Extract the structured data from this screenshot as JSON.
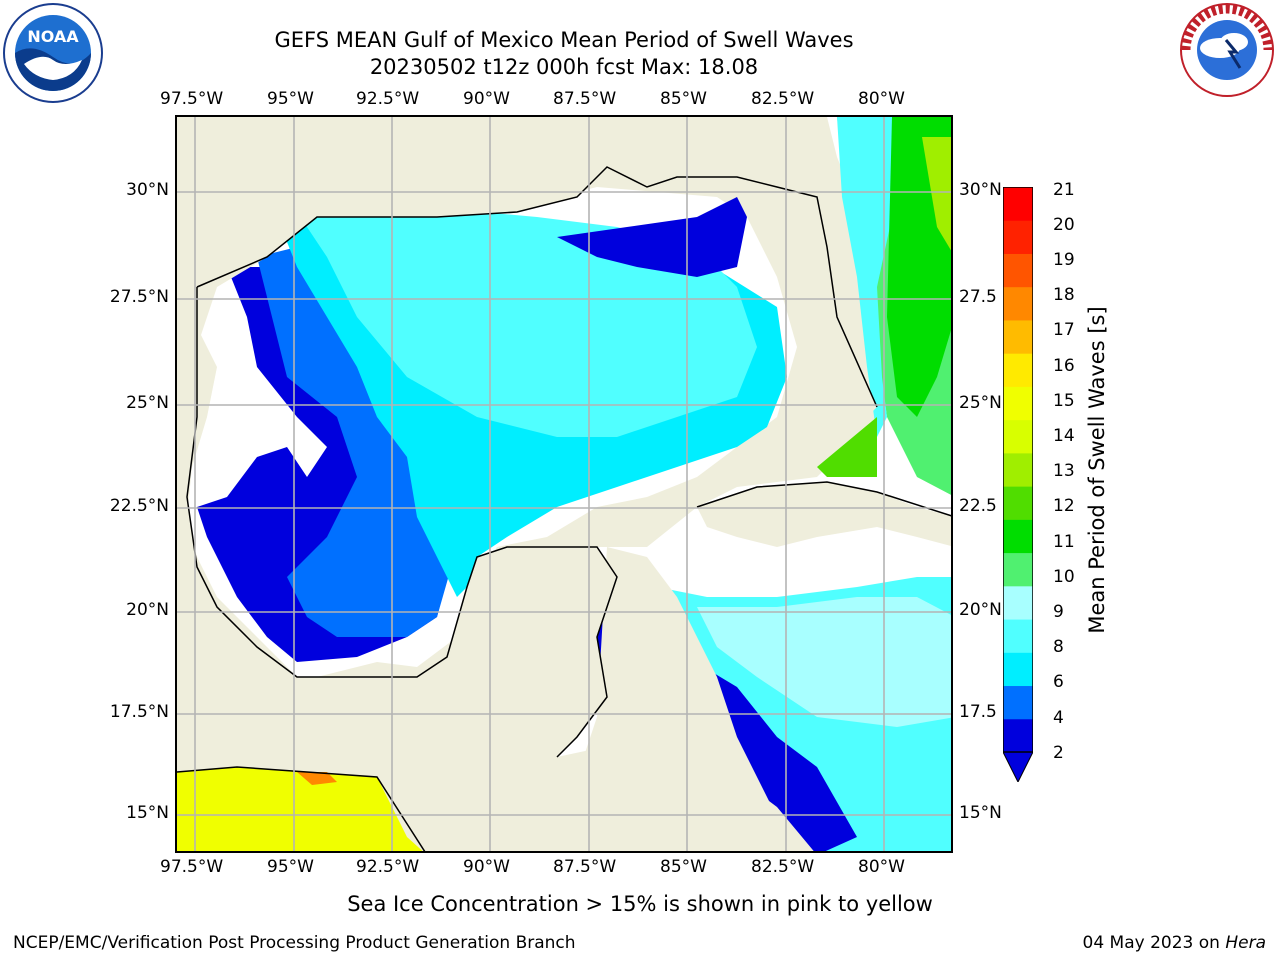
{
  "header": {
    "title_line1": "GEFS MEAN Gulf of Mexico Mean Period of Swell Waves",
    "title_line2": "20230502 t12z 000h fcst   Max: 18.08"
  },
  "logos": {
    "left": "noaa-logo-icon",
    "right": "national-weather-service-logo-icon"
  },
  "map": {
    "lon_ticks": [
      "97.5°W",
      "95°W",
      "92.5°W",
      "90°W",
      "87.5°W",
      "85°W",
      "82.5°W",
      "80°W"
    ],
    "lat_ticks": [
      "30°N",
      "27.5°N",
      "25°N",
      "22.5°N",
      "20°N",
      "17.5°N",
      "15°N"
    ],
    "lat_ticks_right": [
      "30°N",
      "27.5",
      "25°N",
      "22.5",
      "20°N",
      "17.5",
      "15°N"
    ],
    "land_color": "#efeedc",
    "grid_color": "#b4b4b4"
  },
  "colorbar": {
    "title": "Mean Period of Swell Waves [s]",
    "labels": [
      "21",
      "20",
      "19",
      "18",
      "17",
      "16",
      "15",
      "14",
      "13",
      "12",
      "11",
      "10",
      "9",
      "8",
      "6",
      "4",
      "2"
    ],
    "colors": [
      "#0000dd",
      "#0070ff",
      "#00eeff",
      "#50ffff",
      "#a8ffff",
      "#50f070",
      "#00dd00",
      "#50dd00",
      "#a0ee00",
      "#d8ff00",
      "#f0ff00",
      "#ffea00",
      "#ffbb00",
      "#ff8800",
      "#ff5500",
      "#ff2200",
      "#ff0000"
    ]
  },
  "note": "Sea Ice Concentration > 15% is shown in pink to yellow",
  "footer": {
    "left": "NCEP/EMC/Verification Post Processing Product Generation Branch",
    "date": "04 May 2023 on ",
    "machine": "Hera"
  }
}
